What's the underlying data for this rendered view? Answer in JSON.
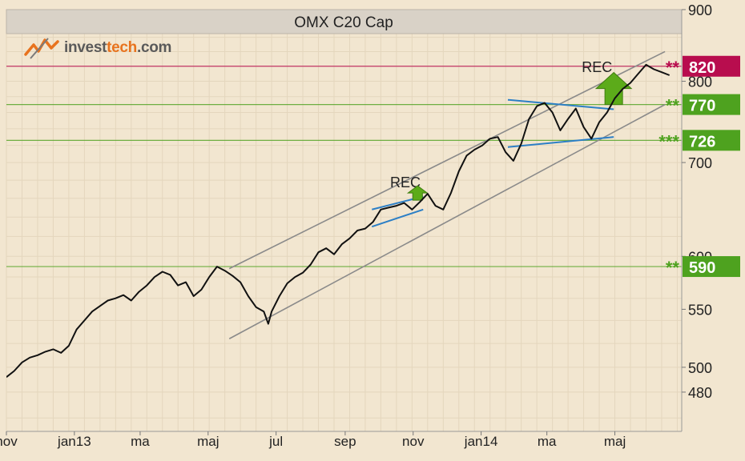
{
  "chart_data": {
    "type": "line",
    "title": "OMX C20 Cap",
    "y_scale": "log",
    "y_range": [
      450,
      900
    ],
    "y_ticks": [
      480,
      500,
      550,
      600,
      700,
      800,
      900
    ],
    "x_range": [
      "2012-11-01",
      "2014-06-30"
    ],
    "x_ticks": [
      {
        "label": "nov",
        "date": "2012-11-01"
      },
      {
        "label": "jan13",
        "date": "2013-01-01"
      },
      {
        "label": "ma",
        "date": "2013-03-01"
      },
      {
        "label": "maj",
        "date": "2013-05-01"
      },
      {
        "label": "jul",
        "date": "2013-07-01"
      },
      {
        "label": "sep",
        "date": "2013-09-01"
      },
      {
        "label": "nov",
        "date": "2013-11-01"
      },
      {
        "label": "jan14",
        "date": "2014-01-01"
      },
      {
        "label": "ma",
        "date": "2014-03-01"
      },
      {
        "label": "maj",
        "date": "2014-05-01"
      }
    ],
    "grid": true,
    "series": [
      {
        "color": "#111111",
        "points": [
          [
            "2012-11-01",
            492
          ],
          [
            "2012-11-08",
            497
          ],
          [
            "2012-11-15",
            504
          ],
          [
            "2012-11-22",
            508
          ],
          [
            "2012-11-29",
            510
          ],
          [
            "2012-12-06",
            513
          ],
          [
            "2012-12-13",
            515
          ],
          [
            "2012-12-20",
            512
          ],
          [
            "2012-12-27",
            518
          ],
          [
            "2013-01-03",
            532
          ],
          [
            "2013-01-10",
            540
          ],
          [
            "2013-01-17",
            548
          ],
          [
            "2013-01-24",
            553
          ],
          [
            "2013-01-31",
            558
          ],
          [
            "2013-02-07",
            560
          ],
          [
            "2013-02-14",
            563
          ],
          [
            "2013-02-21",
            558
          ],
          [
            "2013-02-28",
            566
          ],
          [
            "2013-03-07",
            572
          ],
          [
            "2013-03-14",
            580
          ],
          [
            "2013-03-21",
            585
          ],
          [
            "2013-03-28",
            582
          ],
          [
            "2013-04-04",
            572
          ],
          [
            "2013-04-11",
            575
          ],
          [
            "2013-04-18",
            562
          ],
          [
            "2013-04-25",
            568
          ],
          [
            "2013-05-02",
            580
          ],
          [
            "2013-05-09",
            590
          ],
          [
            "2013-05-16",
            586
          ],
          [
            "2013-05-23",
            581
          ],
          [
            "2013-05-30",
            575
          ],
          [
            "2013-06-06",
            562
          ],
          [
            "2013-06-13",
            552
          ],
          [
            "2013-06-20",
            548
          ],
          [
            "2013-06-24",
            537
          ],
          [
            "2013-06-27",
            548
          ],
          [
            "2013-07-04",
            562
          ],
          [
            "2013-07-11",
            574
          ],
          [
            "2013-07-18",
            580
          ],
          [
            "2013-07-25",
            584
          ],
          [
            "2013-08-01",
            592
          ],
          [
            "2013-08-08",
            604
          ],
          [
            "2013-08-15",
            608
          ],
          [
            "2013-08-22",
            602
          ],
          [
            "2013-08-29",
            612
          ],
          [
            "2013-09-05",
            618
          ],
          [
            "2013-09-12",
            626
          ],
          [
            "2013-09-19",
            628
          ],
          [
            "2013-09-26",
            635
          ],
          [
            "2013-10-03",
            648
          ],
          [
            "2013-10-10",
            650
          ],
          [
            "2013-10-17",
            652
          ],
          [
            "2013-10-24",
            655
          ],
          [
            "2013-10-31",
            648
          ],
          [
            "2013-11-07",
            656
          ],
          [
            "2013-11-14",
            665
          ],
          [
            "2013-11-21",
            652
          ],
          [
            "2013-11-28",
            648
          ],
          [
            "2013-12-05",
            666
          ],
          [
            "2013-12-12",
            690
          ],
          [
            "2013-12-19",
            708
          ],
          [
            "2013-12-26",
            715
          ],
          [
            "2014-01-02",
            720
          ],
          [
            "2014-01-09",
            728
          ],
          [
            "2014-01-16",
            730
          ],
          [
            "2014-01-23",
            712
          ],
          [
            "2014-01-30",
            702
          ],
          [
            "2014-02-06",
            722
          ],
          [
            "2014-02-13",
            752
          ],
          [
            "2014-02-20",
            768
          ],
          [
            "2014-02-27",
            772
          ],
          [
            "2014-03-06",
            760
          ],
          [
            "2014-03-13",
            738
          ],
          [
            "2014-03-20",
            752
          ],
          [
            "2014-03-27",
            765
          ],
          [
            "2014-04-03",
            742
          ],
          [
            "2014-04-10",
            728
          ],
          [
            "2014-04-17",
            748
          ],
          [
            "2014-04-24",
            760
          ],
          [
            "2014-05-01",
            778
          ],
          [
            "2014-05-08",
            790
          ],
          [
            "2014-05-15",
            798
          ],
          [
            "2014-05-22",
            810
          ],
          [
            "2014-05-29",
            822
          ],
          [
            "2014-06-05",
            816
          ],
          [
            "2014-06-12",
            812
          ],
          [
            "2014-06-19",
            808
          ]
        ]
      }
    ],
    "horizontal_levels": [
      {
        "value": 820,
        "label": "820",
        "stars": "**",
        "color": "#b80d4e"
      },
      {
        "value": 770,
        "label": "770",
        "stars": "**",
        "color": "#4ea21f"
      },
      {
        "value": 726,
        "label": "726",
        "stars": "***",
        "color": "#4ea21f"
      },
      {
        "value": 590,
        "label": "590",
        "stars": "**",
        "color": "#4ea21f"
      }
    ],
    "trend_channel": {
      "color": "#8a8a8a",
      "lines": [
        [
          [
            "2013-05-20",
            588
          ],
          [
            "2014-06-15",
            840
          ]
        ],
        [
          [
            "2013-05-20",
            524
          ],
          [
            "2014-06-15",
            770
          ]
        ]
      ]
    },
    "patterns": [
      {
        "color": "#2c7fc6",
        "lines": [
          [
            [
              "2013-09-25",
              648
            ],
            [
              "2013-11-10",
              662
            ]
          ],
          [
            [
              "2013-09-25",
              630
            ],
            [
              "2013-11-10",
              648
            ]
          ]
        ],
        "annotation": "REC",
        "annotation_at": [
          "2013-10-25",
          672
        ],
        "arrow_at": [
          "2013-11-05",
          658
        ],
        "arrow_size": "small"
      },
      {
        "color": "#2c7fc6",
        "lines": [
          [
            [
              "2014-01-25",
              776
            ],
            [
              "2014-04-30",
              764
            ]
          ],
          [
            [
              "2014-01-25",
              718
            ],
            [
              "2014-04-30",
              730
            ]
          ]
        ],
        "annotation": "REC",
        "annotation_at": [
          "2014-04-15",
          812
        ],
        "arrow_at": [
          "2014-04-30",
          770
        ],
        "arrow_size": "large"
      }
    ]
  },
  "brand": {
    "name_part1": "invest",
    "name_part2": "tech",
    "name_part3": ".com",
    "accent_color": "#e8731e"
  }
}
